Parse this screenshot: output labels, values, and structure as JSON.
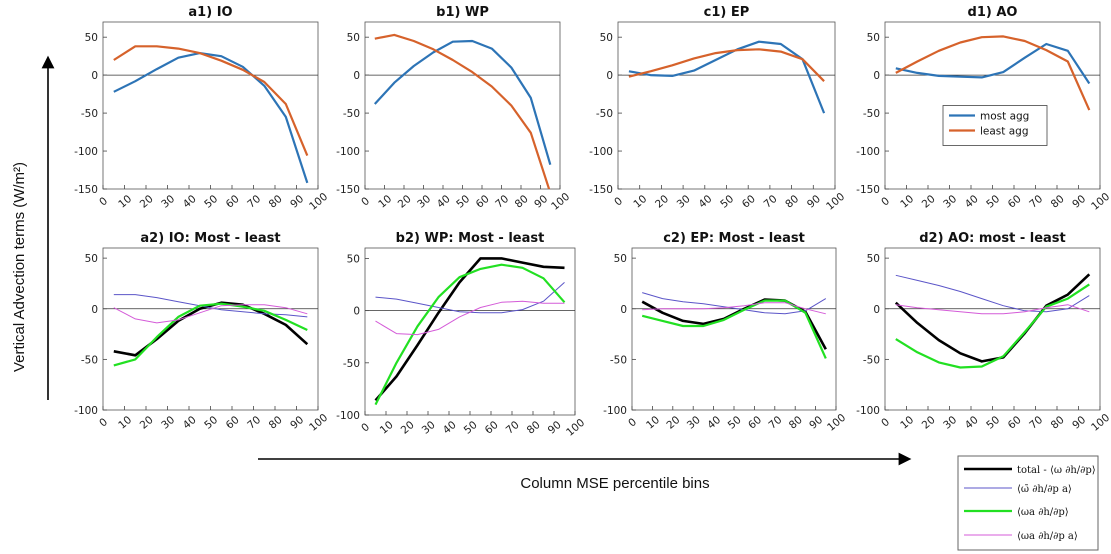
{
  "figure": {
    "ylabel": "Vertical Advection terms (W/m²)",
    "xlabel": "Column MSE percentile bins"
  },
  "legend_top": [
    "most agg",
    "least agg"
  ],
  "legend_bottom": [
    "total - ⟨ω ∂h/∂p⟩",
    "⟨ω̄ ∂h/∂p a⟩",
    "⟨ωa ∂h/∂p⟩",
    "⟨ωa ∂h/∂p a⟩"
  ],
  "colors": {
    "most_agg": "#2D74B6",
    "least_agg": "#D6622B",
    "total": "#000000",
    "mean_omega": "#5B55C8",
    "omega_a": "#22E022",
    "omega_a_anom": "#D45BD8",
    "zero_line": "#333333",
    "grid_box": "#555555"
  },
  "chart_data": [
    {
      "type": "line",
      "title": "a1) IO",
      "x": [
        5,
        15,
        25,
        35,
        45,
        55,
        65,
        75,
        85,
        95
      ],
      "ylim": [
        -150,
        70
      ],
      "yticks": [
        -150,
        -100,
        -50,
        0,
        50
      ],
      "xticks": [
        0,
        10,
        20,
        30,
        40,
        50,
        60,
        70,
        80,
        90,
        100
      ],
      "series": [
        {
          "name": "most agg",
          "color_key": "most_agg",
          "values": [
            -22,
            -8,
            8,
            23,
            29,
            25,
            11,
            -14,
            -55,
            -142
          ]
        },
        {
          "name": "least agg",
          "color_key": "least_agg",
          "values": [
            20,
            38,
            38,
            35,
            29,
            19,
            7,
            -9,
            -38,
            -106
          ]
        }
      ]
    },
    {
      "type": "line",
      "title": "b1) WP",
      "x": [
        5,
        15,
        25,
        35,
        45,
        55,
        65,
        75,
        85,
        95
      ],
      "ylim": [
        -150,
        70
      ],
      "yticks": [
        -150,
        -100,
        -50,
        0,
        50
      ],
      "xticks": [
        0,
        10,
        20,
        30,
        40,
        50,
        60,
        70,
        80,
        90,
        100
      ],
      "series": [
        {
          "name": "most agg",
          "color_key": "most_agg",
          "values": [
            -38,
            -10,
            12,
            30,
            44,
            45,
            35,
            10,
            -30,
            -118
          ]
        },
        {
          "name": "least agg",
          "color_key": "least_agg",
          "values": [
            48,
            53,
            45,
            34,
            20,
            4,
            -15,
            -40,
            -76,
            -155
          ]
        }
      ]
    },
    {
      "type": "line",
      "title": "c1) EP",
      "x": [
        5,
        15,
        25,
        35,
        45,
        55,
        65,
        75,
        85,
        95
      ],
      "ylim": [
        -150,
        70
      ],
      "yticks": [
        -150,
        -100,
        -50,
        0,
        50
      ],
      "xticks": [
        0,
        10,
        20,
        30,
        40,
        50,
        60,
        70,
        80,
        90,
        100
      ],
      "series": [
        {
          "name": "most agg",
          "color_key": "most_agg",
          "values": [
            5,
            0,
            -1,
            6,
            20,
            34,
            44,
            41,
            21,
            -50
          ]
        },
        {
          "name": "least agg",
          "color_key": "least_agg",
          "values": [
            -2,
            5,
            13,
            22,
            29,
            33,
            34,
            31,
            21,
            -8
          ]
        }
      ]
    },
    {
      "type": "line",
      "title": "d1) AO",
      "x": [
        5,
        15,
        25,
        35,
        45,
        55,
        65,
        75,
        85,
        95
      ],
      "ylim": [
        -150,
        70
      ],
      "yticks": [
        -150,
        -100,
        -50,
        0,
        50
      ],
      "xticks": [
        0,
        10,
        20,
        30,
        40,
        50,
        60,
        70,
        80,
        90,
        100
      ],
      "legend": "inside-right",
      "series": [
        {
          "name": "most agg",
          "color_key": "most_agg",
          "values": [
            9,
            3,
            -1,
            -2,
            -3,
            4,
            23,
            41,
            32,
            -11
          ]
        },
        {
          "name": "least agg",
          "color_key": "least_agg",
          "values": [
            3,
            18,
            32,
            43,
            50,
            51,
            45,
            33,
            18,
            -46
          ]
        }
      ]
    },
    {
      "type": "line",
      "title": "a2) IO: Most - least",
      "x": [
        5,
        15,
        25,
        35,
        45,
        55,
        65,
        75,
        85,
        95
      ],
      "ylim": [
        -100,
        60
      ],
      "yticks": [
        -100,
        -50,
        0,
        50
      ],
      "xticks": [
        0,
        10,
        20,
        30,
        40,
        50,
        60,
        70,
        80,
        90,
        100
      ],
      "series": [
        {
          "color_key": "total",
          "width": 2.6,
          "values": [
            -42,
            -46,
            -30,
            -12,
            0,
            6,
            4,
            -5,
            -16,
            -35
          ]
        },
        {
          "color_key": "mean_omega",
          "width": 1,
          "values": [
            14,
            14,
            11,
            7,
            3,
            -1,
            -3,
            -5,
            -6,
            -8
          ]
        },
        {
          "color_key": "omega_a",
          "width": 2.2,
          "values": [
            -56,
            -50,
            -28,
            -8,
            3,
            5,
            2,
            -2,
            -11,
            -21
          ]
        },
        {
          "color_key": "omega_a_anom",
          "width": 1,
          "values": [
            1,
            -10,
            -14,
            -11,
            -4,
            3,
            4,
            4,
            1,
            -5
          ]
        }
      ]
    },
    {
      "type": "line",
      "title": "b2) WP: Most - least",
      "x": [
        5,
        15,
        25,
        35,
        45,
        55,
        65,
        75,
        85,
        95
      ],
      "ylim": [
        -100,
        60
      ],
      "yticks": [
        -100,
        -50,
        0,
        50
      ],
      "xticks": [
        0,
        10,
        20,
        30,
        40,
        50,
        60,
        70,
        80,
        90,
        100
      ],
      "series": [
        {
          "color_key": "total",
          "width": 2.6,
          "values": [
            -86,
            -63,
            -33,
            -2,
            27,
            50,
            50,
            46,
            42,
            41
          ]
        },
        {
          "color_key": "mean_omega",
          "width": 1,
          "values": [
            13,
            11,
            7,
            3,
            -1,
            -2,
            -2,
            1,
            9,
            27
          ]
        },
        {
          "color_key": "omega_a",
          "width": 2.2,
          "values": [
            -90,
            -50,
            -15,
            13,
            32,
            40,
            44,
            41,
            31,
            8
          ]
        },
        {
          "color_key": "omega_a_anom",
          "width": 1,
          "values": [
            -10,
            -22,
            -23,
            -18,
            -6,
            3,
            8,
            9,
            7,
            7
          ]
        }
      ]
    },
    {
      "type": "line",
      "title": "c2) EP: Most - least",
      "x": [
        5,
        15,
        25,
        35,
        45,
        55,
        65,
        75,
        85,
        95
      ],
      "ylim": [
        -100,
        60
      ],
      "yticks": [
        -100,
        -50,
        0,
        50
      ],
      "xticks": [
        0,
        10,
        20,
        30,
        40,
        50,
        60,
        70,
        80,
        90,
        100
      ],
      "series": [
        {
          "color_key": "total",
          "width": 2.6,
          "values": [
            7,
            -4,
            -12,
            -15,
            -10,
            0,
            9,
            8,
            -3,
            -40
          ]
        },
        {
          "color_key": "mean_omega",
          "width": 1,
          "values": [
            16,
            10,
            7,
            5,
            2,
            -1,
            -4,
            -5,
            -2,
            10
          ]
        },
        {
          "color_key": "omega_a",
          "width": 2.2,
          "values": [
            -7,
            -12,
            -17,
            -17,
            -11,
            -1,
            8,
            8,
            -4,
            -49
          ]
        },
        {
          "color_key": "omega_a_anom",
          "width": 1,
          "values": [
            -1,
            0,
            0,
            0,
            1,
            3,
            6,
            6,
            0,
            -5
          ]
        }
      ]
    },
    {
      "type": "line",
      "title": "d2) AO: most - least",
      "x": [
        5,
        15,
        25,
        35,
        45,
        55,
        65,
        75,
        85,
        95
      ],
      "ylim": [
        -100,
        60
      ],
      "yticks": [
        -100,
        -50,
        0,
        50
      ],
      "xticks": [
        0,
        10,
        20,
        30,
        40,
        50,
        60,
        70,
        80,
        90,
        100
      ],
      "series": [
        {
          "color_key": "total",
          "width": 2.6,
          "values": [
            6,
            -14,
            -31,
            -44,
            -52,
            -48,
            -24,
            3,
            14,
            34
          ]
        },
        {
          "color_key": "mean_omega",
          "width": 1,
          "values": [
            33,
            28,
            23,
            17,
            10,
            3,
            -2,
            -3,
            0,
            13
          ]
        },
        {
          "color_key": "omega_a",
          "width": 2.2,
          "values": [
            -30,
            -43,
            -53,
            -58,
            -57,
            -47,
            -23,
            2,
            10,
            24
          ]
        },
        {
          "color_key": "omega_a_anom",
          "width": 1,
          "values": [
            4,
            1,
            -1,
            -3,
            -5,
            -5,
            -3,
            1,
            4,
            -3
          ]
        }
      ]
    }
  ]
}
